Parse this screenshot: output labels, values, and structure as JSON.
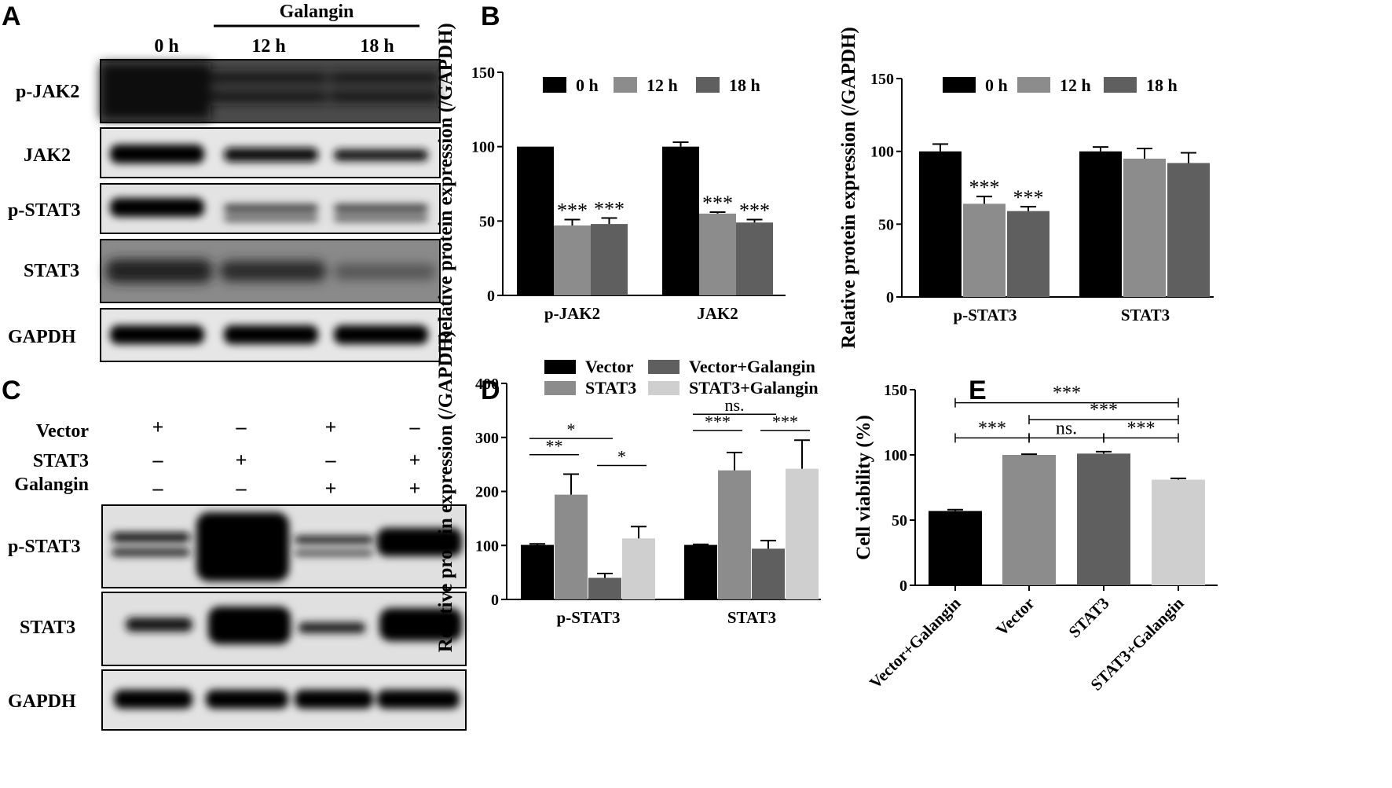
{
  "panels": {
    "A": {
      "letter": "A",
      "treatment": "Galangin",
      "lanes": [
        "0 h",
        "12 h",
        "18 h"
      ],
      "blots": [
        "p-JAK2",
        "JAK2",
        "p-STAT3",
        "STAT3",
        "GAPDH"
      ]
    },
    "C": {
      "letter": "C",
      "row_labels": [
        "Vector",
        "STAT3",
        "Galangin"
      ],
      "conditions": [
        [
          "+",
          "–",
          "+",
          "–"
        ],
        [
          "–",
          "+",
          "–",
          "+"
        ],
        [
          "–",
          "–",
          "+",
          "+"
        ]
      ],
      "blots": [
        "p-STAT3",
        "STAT3",
        "GAPDH"
      ]
    },
    "B": {
      "letter": "B"
    },
    "D": {
      "letter": "D"
    },
    "E": {
      "letter": "E"
    }
  },
  "colors": {
    "black": "#000000",
    "gray_mid": "#8c8c8c",
    "gray_dark": "#5f5f5f",
    "gray_light": "#cfcfcf"
  },
  "chart_data": [
    {
      "id": "B1",
      "type": "bar",
      "categories": [
        "p-JAK2",
        "JAK2"
      ],
      "series": [
        {
          "name": "0 h",
          "color": "#000000",
          "values": [
            100,
            100
          ],
          "errors": [
            0,
            3
          ]
        },
        {
          "name": "12 h",
          "color": "#8c8c8c",
          "values": [
            47,
            55
          ],
          "errors": [
            4,
            1
          ]
        },
        {
          "name": "18 h",
          "color": "#5f5f5f",
          "values": [
            48,
            49
          ],
          "errors": [
            4,
            2
          ]
        }
      ],
      "significance": [
        [
          "",
          "***",
          "***"
        ],
        [
          "",
          "***",
          "***"
        ]
      ],
      "ylabel": "Relative protein expression (/GAPDH)",
      "ylim": [
        0,
        150
      ],
      "yticks": [
        0,
        50,
        100,
        150
      ],
      "legend": "top"
    },
    {
      "id": "B2",
      "type": "bar",
      "categories": [
        "p-STAT3",
        "STAT3"
      ],
      "series": [
        {
          "name": "0 h",
          "color": "#000000",
          "values": [
            100,
            100
          ],
          "errors": [
            5,
            3
          ]
        },
        {
          "name": "12  h",
          "color": "#8c8c8c",
          "values": [
            64,
            95
          ],
          "errors": [
            5,
            7
          ]
        },
        {
          "name": "18 h",
          "color": "#5f5f5f",
          "values": [
            59,
            92
          ],
          "errors": [
            3,
            7
          ]
        }
      ],
      "significance": [
        [
          "",
          "***",
          "***"
        ],
        [
          "",
          "",
          ""
        ]
      ],
      "ylabel": "Relative protein expression (/GAPDH)",
      "ylim": [
        0,
        150
      ],
      "yticks": [
        0,
        50,
        100,
        150
      ],
      "legend": "top"
    },
    {
      "id": "D",
      "type": "bar",
      "categories": [
        "p-STAT3",
        "STAT3"
      ],
      "series": [
        {
          "name": "Vector",
          "color": "#000000",
          "values": [
            101,
            101
          ],
          "errors": [
            2,
            1
          ]
        },
        {
          "name": "STAT3",
          "color": "#8c8c8c",
          "values": [
            194,
            239
          ],
          "errors": [
            38,
            33
          ]
        },
        {
          "name": "Vector+Galangin",
          "color": "#5f5f5f",
          "values": [
            40,
            94
          ],
          "errors": [
            8,
            15
          ]
        },
        {
          "name": "STAT3+Galangin",
          "color": "#cfcfcf",
          "values": [
            113,
            242
          ],
          "errors": [
            22,
            53
          ]
        }
      ],
      "comparisons": [
        {
          "category": 0,
          "from": 0,
          "to": 2,
          "label": "*",
          "level": 298
        },
        {
          "category": 0,
          "from": 0,
          "to": 1,
          "label": "**",
          "level": 268
        },
        {
          "category": 0,
          "from": 2,
          "to": 3,
          "label": "*",
          "level": 248
        },
        {
          "category": 1,
          "from": 0,
          "to": 2,
          "label": "ns.",
          "level": 343
        },
        {
          "category": 1,
          "from": 0,
          "to": 1,
          "label": "***",
          "level": 313
        },
        {
          "category": 1,
          "from": 2,
          "to": 3,
          "label": "***",
          "level": 313
        }
      ],
      "ylabel": "Relative protein expression (/GAPDH)",
      "ylim": [
        0,
        400
      ],
      "yticks": [
        0,
        100,
        200,
        300,
        400
      ],
      "legend": "top"
    },
    {
      "id": "E",
      "type": "bar",
      "categories": [
        "Vector+Galangin",
        "Vector",
        "STAT3",
        "STAT3+Galangin"
      ],
      "values": [
        57,
        100,
        101,
        81
      ],
      "errors": [
        1,
        0.5,
        1.5,
        1
      ],
      "colors": [
        "#000000",
        "#8c8c8c",
        "#5f5f5f",
        "#cfcfcf"
      ],
      "comparisons": [
        {
          "from": 0,
          "to": 3,
          "label": "***",
          "level": 140
        },
        {
          "from": 1,
          "to": 3,
          "label": "***",
          "level": 127
        },
        {
          "from": 0,
          "to": 1,
          "label": "***",
          "level": 113
        },
        {
          "from": 1,
          "to": 2,
          "label": "ns.",
          "level": 113
        },
        {
          "from": 2,
          "to": 3,
          "label": "***",
          "level": 113
        }
      ],
      "ylabel": "Cell viability (%)",
      "ylim": [
        0,
        150
      ],
      "yticks": [
        0,
        50,
        100,
        150
      ]
    }
  ]
}
